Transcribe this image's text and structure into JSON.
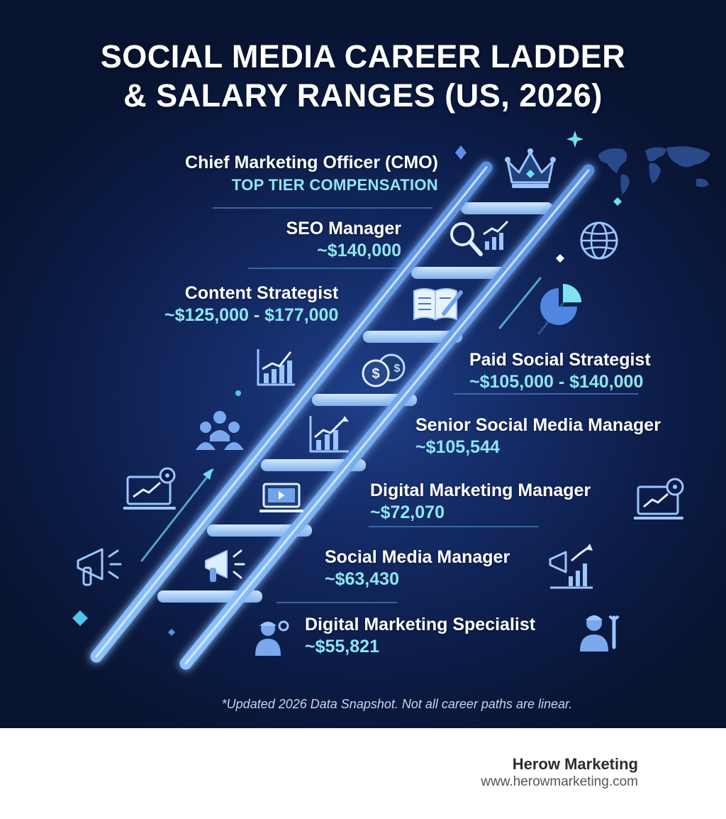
{
  "title": {
    "line1": "SOCIAL MEDIA CAREER LADDER",
    "line2": "& SALARY RANGES (US, 2026)"
  },
  "roles": {
    "cmo": {
      "name": "Chief Marketing Officer (CMO)",
      "tier": "TOP TIER COMPENSATION"
    },
    "seo": {
      "name": "SEO Manager",
      "salary": "~$140,000"
    },
    "content": {
      "name": "Content Strategist",
      "salary": "~$125,000 - $177,000"
    },
    "paid_social": {
      "name": "Paid Social Strategist",
      "salary": "~$105,000 - $140,000"
    },
    "senior_smm": {
      "name": "Senior Social Media Manager",
      "salary": "~$105,544"
    },
    "dmm": {
      "name": "Digital Marketing Manager",
      "salary": "~$72,070"
    },
    "smm": {
      "name": "Social Media Manager",
      "salary": "~$63,430"
    },
    "dms": {
      "name": "Digital Marketing Specialist",
      "salary": "~$55,821"
    }
  },
  "footnote": "*Updated 2026 Data Snapshot. Not all career paths are linear.",
  "brand": {
    "name": "Herow Marketing",
    "url": "www.herowmarketing.com"
  },
  "icons": [
    "crown-icon",
    "magnifier-chart-icon",
    "book-pen-icon",
    "coins-icon",
    "bar-chart-icon",
    "laptop-icon",
    "megaphone-icon",
    "worker-icon",
    "globe-icon",
    "pie-chart-icon",
    "team-icon",
    "laptop-gear-icon",
    "world-map-icon",
    "wrench-person-icon"
  ],
  "colors": {
    "background": "#0c1c47",
    "accent": "#8fe6f2",
    "ladder": "#6fa4e8",
    "text": "#ffffff"
  }
}
